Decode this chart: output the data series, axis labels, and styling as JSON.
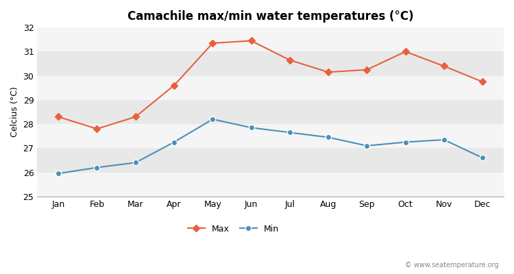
{
  "months": [
    "Jan",
    "Feb",
    "Mar",
    "Apr",
    "May",
    "Jun",
    "Jul",
    "Aug",
    "Sep",
    "Oct",
    "Nov",
    "Dec"
  ],
  "max_temps": [
    28.3,
    27.8,
    28.3,
    29.6,
    31.35,
    31.45,
    30.65,
    30.15,
    30.25,
    31.0,
    30.4,
    29.75
  ],
  "min_temps": [
    25.95,
    26.2,
    26.4,
    27.25,
    28.2,
    27.85,
    27.65,
    27.45,
    27.1,
    27.25,
    27.35,
    26.6
  ],
  "max_color": "#e8603c",
  "min_color": "#4a90b8",
  "title": "Camachile max/min water temperatures (°C)",
  "ylabel": "Celcius (°C)",
  "ylim": [
    25,
    32
  ],
  "yticks": [
    25,
    26,
    27,
    28,
    29,
    30,
    31,
    32
  ],
  "fig_bg_color": "#ffffff",
  "band_light": "#f5f5f5",
  "band_dark": "#e8e8e8",
  "watermark": "© www.seatemperature.org",
  "legend_max": "Max",
  "legend_min": "Min"
}
